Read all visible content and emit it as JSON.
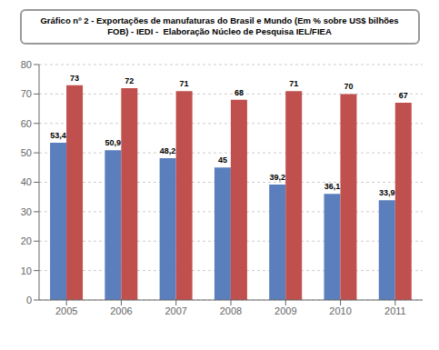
{
  "chart_data": {
    "type": "bar",
    "title": "Gráfico nº 2 - Exportações de manufaturas do Brasil e Mundo (Em % sobre US$ bilhões\nFOB) - IEDI -  Elaboração Núcleo de Pesquisa IEL/FIEA",
    "categories": [
      2005,
      2006,
      2007,
      2008,
      2009,
      2010,
      2011
    ],
    "series": [
      {
        "color": "#5b7fbc",
        "values": [
          53.4,
          50.9,
          48.2,
          45,
          39.2,
          36.1,
          33.9
        ],
        "value_labels": [
          "53,4",
          "50,9",
          "48,2",
          "45",
          "39,2",
          "36,1",
          "33,9"
        ]
      },
      {
        "color": "#c0504d",
        "values": [
          73,
          72,
          71,
          68,
          71,
          70,
          67
        ]
      }
    ],
    "ylim": [
      0,
      80
    ],
    "yticks": [
      0,
      10,
      20,
      30,
      40,
      50,
      60,
      70,
      80
    ],
    "grid": true,
    "data_labels": true
  }
}
